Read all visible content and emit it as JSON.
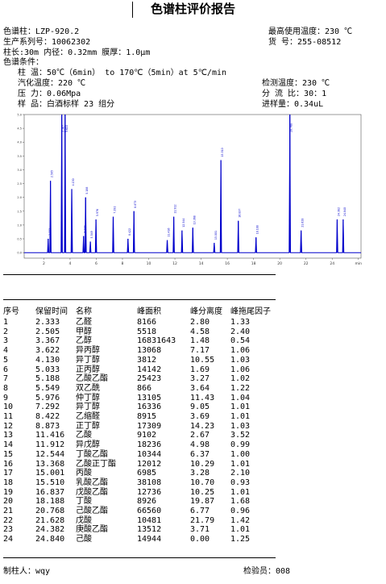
{
  "title": "色谱柱评价报告",
  "info": {
    "model_label": "色谱柱：",
    "model": "LZP-920.2",
    "max_temp_label": "最高使用温度：",
    "max_temp": "230 ℃",
    "serial_label": "生产系列号：",
    "serial": "10062302",
    "cat_label": "货    号：",
    "cat_no": "255-08512",
    "dims": "柱长:30m 内径：0.32mm  膜厚：1.0μm",
    "cond_label": "色谱条件：",
    "oven_label": "柱    温：",
    "oven": "50℃（6min）  to 170℃（5min）at 5℃/min",
    "inj_label": "汽化温度：",
    "inj": "220 ℃",
    "det_label": "检测温度：",
    "det": "230 ℃",
    "pressure_label": "压    力：",
    "pressure": "0.06Mpa",
    "split_label": "分 流 比：",
    "split": "30：1",
    "sample_label": "样    品：",
    "sample": "白酒标样 23 组分",
    "volume_label": "进样量：",
    "volume": "0.34uL"
  },
  "chart_data": {
    "type": "line",
    "x_ticks": [
      "2",
      "4",
      "6",
      "8",
      "10",
      "12",
      "14",
      "16",
      "18",
      "20",
      "22",
      "24",
      "min"
    ],
    "y_ticks": [
      "5.0",
      "4.5",
      "4.0",
      "3.5",
      "3.0",
      "2.5",
      "2.0",
      "1.5",
      "1.0",
      "0.5",
      "0.0"
    ],
    "xlim": [
      0.5,
      26.2
    ],
    "ylim": [
      -0.2,
      5.0
    ],
    "series_color": "#0000cc",
    "peaks": [
      {
        "rt": 2.333,
        "h": 0.5
      },
      {
        "rt": 2.505,
        "h": 2.6
      },
      {
        "rt": 3.367,
        "h": 5.0
      },
      {
        "rt": 3.622,
        "h": 5.0
      },
      {
        "rt": 4.13,
        "h": 2.3
      },
      {
        "rt": 5.033,
        "h": 0.6
      },
      {
        "rt": 5.188,
        "h": 2.0
      },
      {
        "rt": 5.549,
        "h": 0.4
      },
      {
        "rt": 5.976,
        "h": 1.2
      },
      {
        "rt": 7.292,
        "h": 1.3
      },
      {
        "rt": 8.422,
        "h": 0.5
      },
      {
        "rt": 8.873,
        "h": 1.5
      },
      {
        "rt": 11.416,
        "h": 0.45
      },
      {
        "rt": 11.912,
        "h": 1.3
      },
      {
        "rt": 12.544,
        "h": 0.8
      },
      {
        "rt": 13.368,
        "h": 0.9
      },
      {
        "rt": 15.001,
        "h": 0.35
      },
      {
        "rt": 15.51,
        "h": 3.35
      },
      {
        "rt": 16.837,
        "h": 1.15
      },
      {
        "rt": 18.188,
        "h": 0.55
      },
      {
        "rt": 20.768,
        "h": 5.0
      },
      {
        "rt": 21.628,
        "h": 0.8
      },
      {
        "rt": 24.382,
        "h": 1.2
      },
      {
        "rt": 24.84,
        "h": 1.2
      }
    ]
  },
  "table": {
    "headers": [
      "序号",
      "保留时间",
      "名称",
      "峰面积",
      "峰分离度",
      "峰拖尾因子"
    ],
    "rows": [
      [
        "1",
        "2.333",
        "乙醛",
        "8166",
        "2.80",
        "1.33"
      ],
      [
        "2",
        "2.505",
        "甲醇",
        "5518",
        "4.58",
        "2.40"
      ],
      [
        "3",
        "3.367",
        "乙醇",
        "16831643",
        "1.48",
        "0.54"
      ],
      [
        "4",
        "3.622",
        "异丙醇",
        "13068",
        "7.17",
        "1.06"
      ],
      [
        "5",
        "4.130",
        "异丁醇",
        "3812",
        "10.55",
        "1.03"
      ],
      [
        "6",
        "5.033",
        "正丙醇",
        "14142",
        "1.69",
        "1.06"
      ],
      [
        "7",
        "5.188",
        "乙酸乙酯",
        "25423",
        "3.27",
        "1.02"
      ],
      [
        "8",
        "5.549",
        "双乙酰",
        "866",
        "3.64",
        "1.22"
      ],
      [
        "9",
        "5.976",
        "仲丁醇",
        "13105",
        "11.43",
        "1.04"
      ],
      [
        "10",
        "7.292",
        "异丁醇",
        "16336",
        "9.05",
        "1.01"
      ],
      [
        "11",
        "8.422",
        "乙缩醛",
        "8915",
        "3.69",
        "1.01"
      ],
      [
        "12",
        "8.873",
        "正丁醇",
        "17309",
        "14.23",
        "1.03"
      ],
      [
        "13",
        "11.416",
        "乙酸",
        "9102",
        "2.67",
        "3.52"
      ],
      [
        "14",
        "11.912",
        "异戊醇",
        "18236",
        "4.98",
        "0.99"
      ],
      [
        "15",
        "12.544",
        "丁酸乙酯",
        "10344",
        "6.37",
        "1.00"
      ],
      [
        "16",
        "13.368",
        "乙酸正丁酯",
        "12012",
        "10.29",
        "1.01"
      ],
      [
        "17",
        "15.001",
        "丙酸",
        "6985",
        "3.28",
        "2.10"
      ],
      [
        "18",
        "15.510",
        "乳酸乙酯",
        "38108",
        "10.70",
        "0.93"
      ],
      [
        "19",
        "16.837",
        "戊酸乙酯",
        "12736",
        "10.25",
        "1.01"
      ],
      [
        "20",
        "18.188",
        "丁酸",
        "8926",
        "19.87",
        "1.68"
      ],
      [
        "21",
        "20.768",
        "己酸乙酯",
        "66560",
        "6.77",
        "0.96"
      ],
      [
        "22",
        "21.628",
        "戊酸",
        "10481",
        "21.79",
        "1.42"
      ],
      [
        "23",
        "24.382",
        "庚酸乙酯",
        "13512",
        "3.71",
        "1.01"
      ],
      [
        "24",
        "24.840",
        "己酸",
        "14944",
        "0.00",
        "1.25"
      ]
    ]
  },
  "footer": {
    "maker_label": "制柱人：",
    "maker": "wqy",
    "inspector_label": "检验员：",
    "inspector": "008"
  }
}
